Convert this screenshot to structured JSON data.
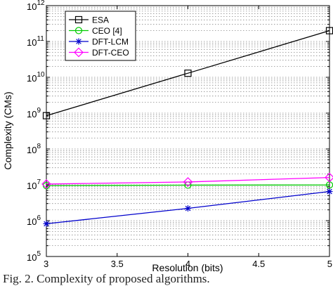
{
  "caption": "Fig. 2.   Complexity of proposed algorithms.",
  "chart_data": {
    "type": "line",
    "title": "",
    "xlabel": "Resolution (bits)",
    "ylabel": "Complexity (CMs)",
    "x": [
      3,
      4,
      5
    ],
    "xlim": [
      3,
      5
    ],
    "ylim": [
      100000,
      1000000000000
    ],
    "yscale": "log",
    "grid": "y-minor-dotted",
    "legend_position": "top-left",
    "x_ticks": [
      "3",
      "3.5",
      "4",
      "4.5",
      "5"
    ],
    "y_ticks": [
      {
        "base": "10",
        "exp": "5"
      },
      {
        "base": "10",
        "exp": "6"
      },
      {
        "base": "10",
        "exp": "7"
      },
      {
        "base": "10",
        "exp": "8"
      },
      {
        "base": "10",
        "exp": "9"
      },
      {
        "base": "10",
        "exp": "10"
      },
      {
        "base": "10",
        "exp": "11"
      },
      {
        "base": "10",
        "exp": "12"
      }
    ],
    "series": [
      {
        "name": "ESA",
        "values": [
          850000000,
          13000000000,
          200000000000
        ],
        "color": "#000000",
        "marker": "square"
      },
      {
        "name": "CEO [4]",
        "values": [
          9500000,
          9800000,
          9900000
        ],
        "color": "#00cc00",
        "marker": "circle"
      },
      {
        "name": "DFT-LCM",
        "values": [
          820000,
          2200000,
          6500000
        ],
        "color": "#0000cc",
        "marker": "star"
      },
      {
        "name": "DFT-CEO",
        "values": [
          10500000,
          12000000,
          16000000
        ],
        "color": "#ff00ff",
        "marker": "diamond"
      }
    ]
  }
}
